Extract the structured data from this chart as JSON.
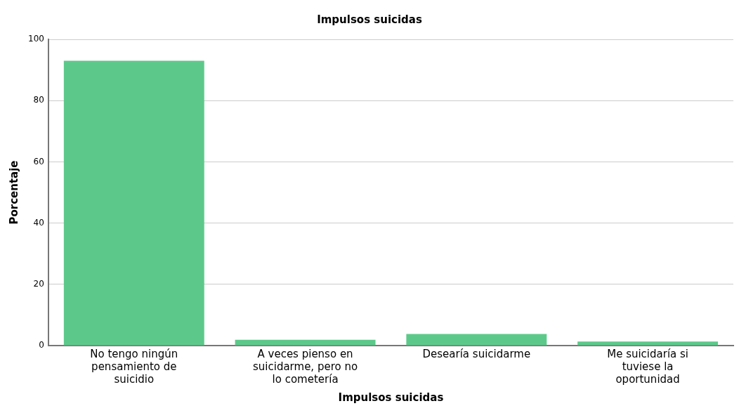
{
  "chart_data": {
    "type": "bar",
    "title": "Impulsos suicidas",
    "xlabel": "Impulsos suicidas",
    "ylabel": "Porcentaje",
    "categories": [
      "No tengo ningún pensamiento de suicidio",
      "A veces pienso en suicidarme, pero no lo cometería",
      "Desearía suicidarme",
      "Me suicidaría si tuviese la oportunidad"
    ],
    "values": [
      93.0,
      1.9,
      3.8,
      1.3
    ],
    "color": "#5cc98a",
    "ylim": [
      0,
      100
    ],
    "yticks": [
      0,
      20,
      40,
      60,
      80,
      100
    ],
    "grid": "y",
    "legend": false
  }
}
